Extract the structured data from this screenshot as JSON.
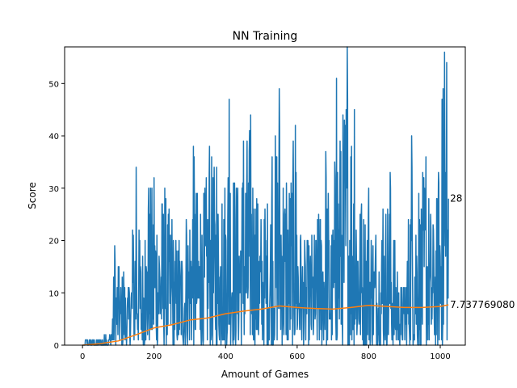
{
  "chart_data": {
    "type": "line",
    "title": "NN Training",
    "xlabel": "Amount of Games",
    "ylabel": "Score",
    "xlim": [
      -50,
      1070
    ],
    "ylim": [
      0,
      57
    ],
    "xticks": [
      0,
      200,
      400,
      600,
      800,
      1000
    ],
    "yticks": [
      0,
      10,
      20,
      30,
      40,
      50
    ],
    "grid": false,
    "colors": {
      "score": "#1f77b4",
      "mean": "#ff7f0e"
    },
    "score_anchors": [
      [
        0,
        0
      ],
      [
        10,
        1
      ],
      [
        30,
        1
      ],
      [
        50,
        1
      ],
      [
        65,
        2
      ],
      [
        80,
        2
      ],
      [
        90,
        19
      ],
      [
        100,
        15
      ],
      [
        115,
        14
      ],
      [
        130,
        11
      ],
      [
        140,
        22
      ],
      [
        150,
        34
      ],
      [
        160,
        20
      ],
      [
        175,
        20
      ],
      [
        185,
        30
      ],
      [
        200,
        32
      ],
      [
        230,
        30
      ],
      [
        250,
        24
      ],
      [
        270,
        20
      ],
      [
        290,
        24
      ],
      [
        310,
        38
      ],
      [
        330,
        25
      ],
      [
        355,
        38
      ],
      [
        375,
        34
      ],
      [
        390,
        27
      ],
      [
        410,
        47
      ],
      [
        430,
        30
      ],
      [
        450,
        39
      ],
      [
        470,
        44
      ],
      [
        490,
        27
      ],
      [
        510,
        26
      ],
      [
        530,
        36
      ],
      [
        550,
        49
      ],
      [
        570,
        31
      ],
      [
        595,
        42
      ],
      [
        610,
        21
      ],
      [
        630,
        20
      ],
      [
        660,
        25
      ],
      [
        680,
        37
      ],
      [
        700,
        22
      ],
      [
        710,
        51
      ],
      [
        720,
        39
      ],
      [
        740,
        57
      ],
      [
        760,
        45
      ],
      [
        780,
        27
      ],
      [
        800,
        30
      ],
      [
        820,
        21
      ],
      [
        840,
        26
      ],
      [
        860,
        33
      ],
      [
        880,
        14
      ],
      [
        900,
        11
      ],
      [
        920,
        40
      ],
      [
        940,
        29
      ],
      [
        960,
        36
      ],
      [
        980,
        23
      ],
      [
        995,
        33
      ],
      [
        1005,
        47
      ],
      [
        1012,
        56
      ],
      [
        1018,
        54
      ],
      [
        1023,
        28
      ]
    ],
    "series": [
      {
        "x": [
          0,
          50,
          100,
          150,
          200,
          250,
          300,
          350,
          400,
          450,
          500,
          550,
          600,
          650,
          700,
          750,
          800,
          850,
          900,
          950,
          1000,
          1023
        ],
        "values": [
          0,
          0.3,
          0.8,
          2.0,
          3.3,
          3.9,
          4.8,
          5.2,
          6.0,
          6.5,
          6.9,
          7.5,
          7.2,
          7.0,
          6.9,
          7.2,
          7.6,
          7.4,
          7.2,
          7.2,
          7.4,
          7.7
        ]
      }
    ],
    "annotations": [
      {
        "text": "28",
        "x": 1023,
        "y": 28
      },
      {
        "text": "7.737769080",
        "x": 1023,
        "y": 7.74
      }
    ]
  }
}
